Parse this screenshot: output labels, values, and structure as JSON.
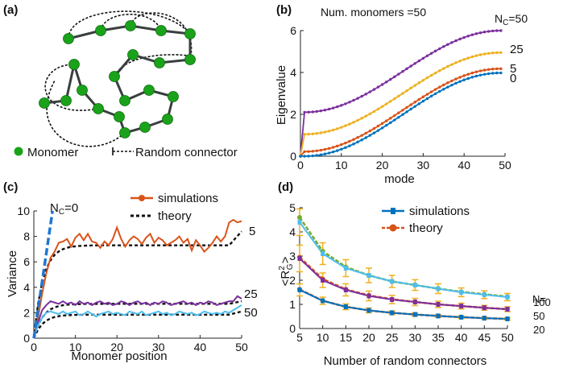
{
  "panel_labels": {
    "a": "(a)",
    "b": "(b)",
    "c": "(c)",
    "d": "(d)"
  },
  "colors": {
    "monomer": "#1aa31a",
    "chain": "#3a3f3f",
    "connector": "#111111",
    "purple": "#7b2f9e",
    "yellow": "#edb120",
    "orange": "#d95319",
    "blue": "#0072bd",
    "light_blue": "#4dbeee",
    "green": "#77ac30",
    "theory": "#111111",
    "dash_blue": "#1f77d0"
  },
  "diagram": {
    "legend_monomer": "Monomer",
    "legend_connector": "Random connector"
  },
  "chart_data": [
    {
      "panel": "b",
      "type": "line",
      "title": "Num. monomers =50",
      "xlabel": "mode",
      "ylabel": "Eigenvalue",
      "xlim": [
        0,
        50
      ],
      "ylim": [
        0,
        6
      ],
      "xticks": [
        0,
        10,
        20,
        30,
        40,
        50
      ],
      "yticks": [
        0,
        2,
        4,
        6
      ],
      "line_label_prefix": "N",
      "line_label_sub": "C",
      "line_label_eq": "=",
      "series": [
        {
          "name": "50",
          "label_text": "50",
          "color": "purple",
          "jump": 2.1,
          "max": 6.0
        },
        {
          "name": "25",
          "label_text": "25",
          "color": "yellow",
          "jump": 1.05,
          "max": 4.95
        },
        {
          "name": "5",
          "label_text": "5",
          "color": "orange",
          "jump": 0.22,
          "max": 4.18
        },
        {
          "name": "0",
          "label_text": "0",
          "color": "blue",
          "jump": 0.0,
          "max": 3.98
        }
      ]
    },
    {
      "panel": "c",
      "type": "line",
      "xlabel": "Monomer position",
      "ylabel": "Variance",
      "xlim": [
        0,
        50
      ],
      "ylim": [
        0,
        10
      ],
      "xticks": [
        0,
        10,
        20,
        30,
        40,
        50
      ],
      "yticks": [
        0,
        2,
        4,
        6,
        8,
        10
      ],
      "legend": {
        "simulations": "simulations",
        "theory": "theory"
      },
      "nc0_prefix": "N",
      "nc0_sub": "C",
      "nc0_suffix": "=0",
      "curve_labels": [
        "5",
        "25",
        "50"
      ],
      "series": [
        {
          "name": "5",
          "color": "orange",
          "sim": [
            0,
            1.6,
            3.5,
            5.1,
            6.3,
            6.8,
            7.5,
            7.6,
            7.8,
            7.2,
            7.9,
            8.2,
            7.7,
            8.2,
            7.6,
            7.5,
            7.1,
            7.6,
            7.3,
            7.8,
            8.7,
            7.8,
            7.2,
            7.7,
            8.0,
            7.8,
            7.4,
            7.9,
            8.2,
            7.5,
            7.9,
            7.7,
            7.3,
            7.5,
            7.7,
            8.0,
            7.5,
            7.8,
            6.9,
            7.7,
            7.3,
            6.8,
            7.1,
            7.5,
            8.0,
            7.6,
            8.0,
            9.1,
            9.3,
            9.1,
            9.2
          ],
          "theory_plateau": 7.3,
          "theory_end": 8.4
        },
        {
          "name": "25",
          "color": "purple",
          "sim": [
            0,
            1.2,
            2.2,
            2.6,
            2.9,
            2.8,
            2.7,
            2.9,
            2.7,
            2.8,
            2.6,
            2.9,
            2.7,
            2.8,
            2.6,
            2.8,
            2.9,
            2.7,
            2.8,
            2.6,
            2.7,
            2.9,
            2.8,
            2.6,
            2.8,
            2.9,
            2.7,
            2.8,
            2.6,
            2.8,
            2.7,
            2.9,
            2.8,
            2.6,
            2.7,
            2.8,
            2.9,
            2.7,
            2.8,
            2.6,
            2.8,
            2.7,
            2.9,
            2.8,
            2.6,
            2.7,
            2.8,
            2.9,
            2.9,
            3.3,
            3.1
          ],
          "theory_plateau": 2.7,
          "theory_end": 2.9
        },
        {
          "name": "50",
          "color": "light_blue",
          "sim": [
            0,
            1.0,
            1.6,
            2.0,
            2.1,
            2.0,
            1.9,
            2.1,
            1.9,
            2.0,
            2.1,
            1.8,
            1.9,
            2.1,
            1.9,
            1.7,
            1.9,
            2.0,
            2.1,
            1.9,
            2.0,
            1.9,
            1.8,
            2.1,
            2.0,
            1.9,
            2.1,
            1.8,
            1.9,
            2.0,
            2.1,
            1.9,
            2.0,
            1.8,
            1.9,
            2.1,
            2.0,
            1.9,
            2.0,
            1.8,
            1.9,
            2.1,
            2.0,
            1.9,
            2.0,
            1.9,
            2.1,
            2.0,
            2.2,
            2.4,
            2.6
          ],
          "theory_plateau": 1.85,
          "theory_end": 2.1
        },
        {
          "name": "0",
          "color": "dash_blue",
          "x": [
            0,
            4.5
          ],
          "y": [
            0,
            10
          ]
        }
      ]
    },
    {
      "panel": "d",
      "type": "line",
      "xlabel": "Number of random connectors",
      "ylabel_main": "<R",
      "ylabel_sup": "2",
      "ylabel_sub": "G",
      "ylabel_end": ">",
      "xlim": [
        5,
        50
      ],
      "ylim": [
        0,
        5
      ],
      "xticks": [
        5,
        10,
        15,
        20,
        25,
        30,
        35,
        40,
        45,
        50
      ],
      "yticks": [
        0,
        1,
        2,
        3,
        4,
        5
      ],
      "legend": {
        "simulations": "simulations",
        "theory": "theory"
      },
      "n_label": "N=",
      "x": [
        5,
        10,
        15,
        20,
        25,
        30,
        35,
        40,
        45,
        50
      ],
      "series": [
        {
          "name": "100",
          "sim_color": "light_blue",
          "theory_color": "green",
          "sim": [
            4.4,
            3.1,
            2.5,
            2.2,
            1.95,
            1.8,
            1.65,
            1.5,
            1.4,
            1.3
          ],
          "theory": [
            4.6,
            3.2,
            2.55,
            2.2,
            1.95,
            1.8,
            1.65,
            1.52,
            1.42,
            1.32
          ],
          "err": [
            0.55,
            0.45,
            0.35,
            0.3,
            0.25,
            0.22,
            0.2,
            0.18,
            0.16,
            0.15
          ]
        },
        {
          "name": "50",
          "sim_color": "purple",
          "theory_color": "orange",
          "sim": [
            2.9,
            2.0,
            1.6,
            1.35,
            1.2,
            1.1,
            1.0,
            0.93,
            0.86,
            0.8
          ],
          "theory": [
            2.95,
            2.05,
            1.62,
            1.37,
            1.21,
            1.1,
            1.0,
            0.93,
            0.86,
            0.8
          ],
          "err": [
            0.55,
            0.3,
            0.25,
            0.2,
            0.17,
            0.15,
            0.13,
            0.12,
            0.1,
            0.1
          ]
        },
        {
          "name": "20",
          "sim_color": "blue",
          "theory_color": "orange",
          "sim": [
            1.6,
            1.15,
            0.9,
            0.75,
            0.65,
            0.58,
            0.52,
            0.47,
            0.43,
            0.4
          ],
          "theory": [
            1.62,
            1.15,
            0.9,
            0.75,
            0.65,
            0.58,
            0.52,
            0.47,
            0.43,
            0.4
          ],
          "err": [
            0.25,
            0.15,
            0.12,
            0.1,
            0.08,
            0.07,
            0.06,
            0.06,
            0.05,
            0.05
          ]
        }
      ]
    }
  ]
}
